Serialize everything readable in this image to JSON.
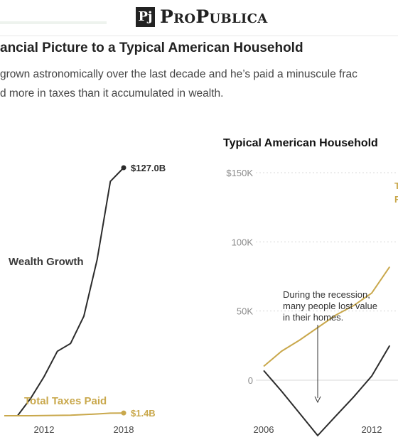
{
  "site": {
    "logo_mark": "Pj",
    "logo_text": "ProPublica"
  },
  "headline": "ancial Picture to a Typical American Household",
  "dek": [
    "grown astronomically over the last decade and he’s paid a minuscule frac",
    "d more in taxes than it accumulated in wealth."
  ],
  "colors": {
    "wealth": "#2b2b2b",
    "taxes": "#c9a84c",
    "gridline": "#d8d8d8"
  },
  "chart_data": [
    {
      "type": "line",
      "x": [
        2009,
        2010,
        2011,
        2012,
        2013,
        2014,
        2015,
        2016,
        2017,
        2018
      ],
      "series": [
        {
          "name": "Wealth Growth",
          "values": [
            0,
            0,
            9,
            20,
            33,
            37,
            51,
            80,
            120,
            127.0
          ]
        },
        {
          "name": "Total Taxes Paid",
          "values": [
            0,
            0,
            0,
            0.1,
            0.2,
            0.3,
            0.6,
            0.9,
            1.3,
            1.4
          ]
        }
      ],
      "end_labels": [
        "$127.0B",
        "$1.4B"
      ],
      "xticks": [
        "2012",
        "2018"
      ],
      "xlim": [
        2009,
        2018
      ],
      "ylim": [
        -5,
        130
      ],
      "title": "",
      "xlabel": "",
      "ylabel": ""
    },
    {
      "type": "line",
      "title": "Typical American Household",
      "x": [
        2006,
        2007,
        2008,
        2009,
        2010,
        2011,
        2012,
        2013
      ],
      "series": [
        {
          "name": "",
          "values": [
            7000,
            -8000,
            -24000,
            -40000,
            -26000,
            -12000,
            3000,
            25000
          ]
        },
        {
          "name": "",
          "values": [
            10000,
            21000,
            29000,
            38000,
            47000,
            54000,
            63000,
            82000
          ]
        }
      ],
      "yticks": [
        "$150K",
        "100K",
        "50K",
        "0"
      ],
      "xticks": [
        "2006",
        "2012"
      ],
      "ylim": [
        -30000,
        150000
      ],
      "annotation": {
        "text": [
          "During the recession,",
          "many people lost value",
          "in their homes."
        ],
        "x": 2009
      },
      "partial_labels": [
        "T",
        "F"
      ],
      "xlabel": "",
      "ylabel": ""
    }
  ]
}
